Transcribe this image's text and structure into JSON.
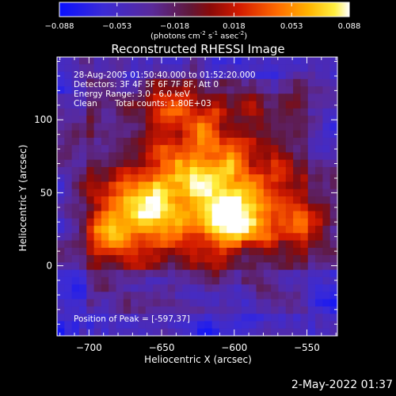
{
  "colorbar": {
    "ticks": [
      "-0.088",
      "-0.053",
      "-0.018",
      "0.018",
      "0.053",
      "0.088"
    ],
    "tick_values": [
      -0.088,
      -0.053,
      -0.018,
      0.018,
      0.053,
      0.088
    ],
    "range": [
      -0.088,
      0.088
    ],
    "units_prefix": "(photons cm",
    "units_exp1": "-2",
    "units_mid": " s",
    "units_exp2": "-1",
    "units_mid2": " asec",
    "units_exp3": "-2",
    "units_suffix": ")",
    "colormap": "blue-purple-red-orange-yellow-white"
  },
  "chart_data": {
    "type": "heatmap",
    "title": "Reconstructed RHESSI Image",
    "xlabel": "Heliocentric X (arcsec)",
    "ylabel": "Heliocentric Y (arcsec)",
    "xlim": [
      -722,
      -529
    ],
    "ylim": [
      -48,
      143
    ],
    "x_ticks": [
      -700,
      -650,
      -600,
      -550
    ],
    "y_ticks": [
      0,
      50,
      100
    ],
    "x_tick_labels": [
      "−700",
      "−650",
      "−600",
      "−550"
    ],
    "y_tick_labels": [
      "0",
      "50",
      "100"
    ],
    "peak_position": [
      -597,
      37
    ],
    "annotations": {
      "time_range": "28-Aug-2005 01:50:40.000 to 01:52:20.000",
      "detectors": "Detectors: 3F 4F 5F 6F 7F 8F, Att 0",
      "energy": "Energy Range: 3.0 - 6.0 keV",
      "method": "Clean",
      "counts": "Total counts: 1.80E+03",
      "peak": "Position of Peak = [-597,37]"
    }
  },
  "footer": {
    "timestamp": "2-May-2022 01:37"
  }
}
